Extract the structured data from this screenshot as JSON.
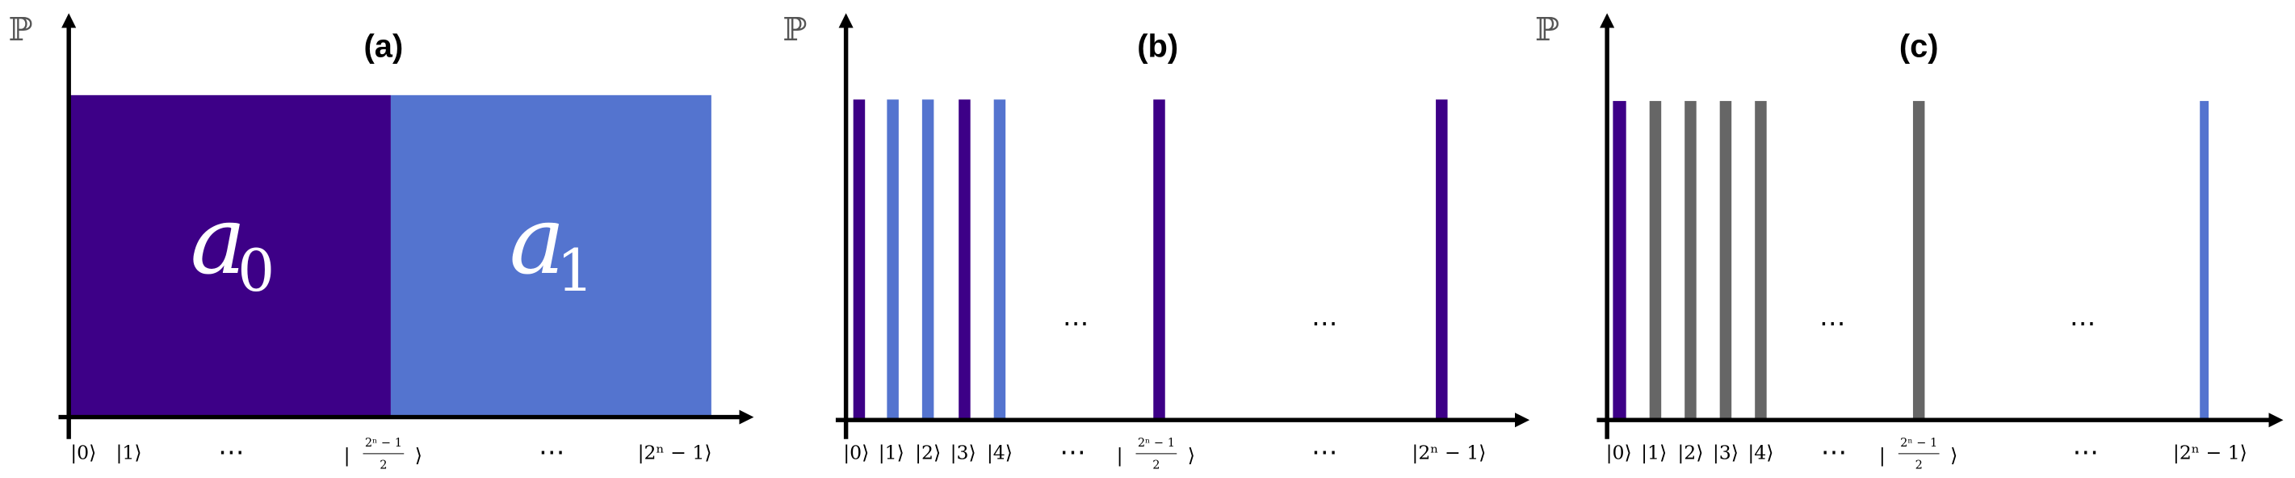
{
  "panels": [
    {
      "label": "(a)",
      "y_label": "ℙ",
      "blocks": [
        {
          "symbol": "a",
          "subscript": "0"
        },
        {
          "symbol": "a",
          "subscript": "1"
        }
      ],
      "x_labels": [
        "|0⟩",
        "|1⟩",
        "⋯",
        {
          "left": "|",
          "numerator": "2ⁿ − 1",
          "denominator": "2",
          "right": "⟩"
        },
        "⋯",
        "|2ⁿ − 1⟩"
      ]
    },
    {
      "label": "(b)",
      "y_label": "ℙ",
      "plot_ellipses": [
        "⋯",
        "⋯"
      ],
      "x_labels": [
        "|0⟩",
        "|1⟩",
        "|2⟩",
        "|3⟩",
        "|4⟩",
        "⋯",
        {
          "left": "|",
          "numerator": "2ⁿ − 1",
          "denominator": "2",
          "right": "⟩"
        },
        "⋯",
        "|2ⁿ − 1⟩"
      ]
    },
    {
      "label": "(c)",
      "y_label": "ℙ",
      "plot_ellipses": [
        "⋯",
        "⋯"
      ],
      "x_labels": [
        "|0⟩",
        "|1⟩",
        "|2⟩",
        "|3⟩",
        "|4⟩",
        "⋯",
        {
          "left": "|",
          "numerator": "2ⁿ − 1",
          "denominator": "2",
          "right": "⟩"
        },
        "⋯",
        "|2ⁿ − 1⟩"
      ]
    }
  ]
}
